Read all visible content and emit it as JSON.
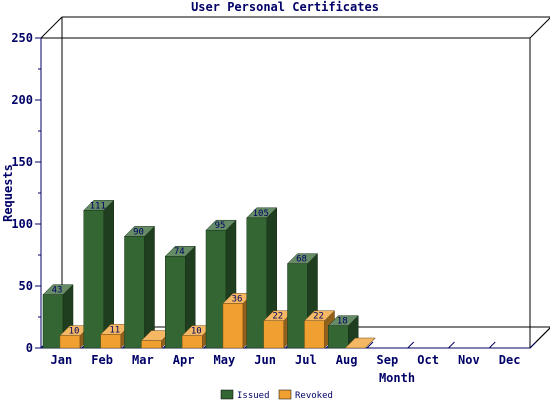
{
  "chart_data": {
    "type": "bar",
    "title": "User Personal Certificates",
    "xlabel": "Month",
    "ylabel": "Requests",
    "categories": [
      "Jan",
      "Feb",
      "Mar",
      "Apr",
      "May",
      "Jun",
      "Jul",
      "Aug",
      "Sep",
      "Oct",
      "Nov",
      "Dec"
    ],
    "series": [
      {
        "name": "Issued",
        "color": "#336633",
        "values": [
          43,
          111,
          90,
          74,
          95,
          105,
          68,
          18,
          null,
          null,
          null,
          null
        ]
      },
      {
        "name": "Revoked",
        "color": "#f0a030",
        "values": [
          10,
          11,
          6,
          10,
          36,
          22,
          22,
          0,
          null,
          null,
          null,
          null
        ]
      }
    ],
    "ylim": [
      0,
      250
    ],
    "yticks": [
      0,
      50,
      100,
      150,
      200,
      250
    ],
    "data_labels": {
      "Issued": [
        "43",
        "111",
        "90",
        "74",
        "95",
        "105",
        "68",
        "18",
        "",
        "",
        "",
        ""
      ],
      "Revoked": [
        "10",
        "11",
        "",
        "10",
        "36",
        "22",
        "22",
        "",
        "",
        "",
        "",
        ""
      ]
    },
    "grid": false,
    "style": "3d",
    "legend_position": "bottom"
  }
}
